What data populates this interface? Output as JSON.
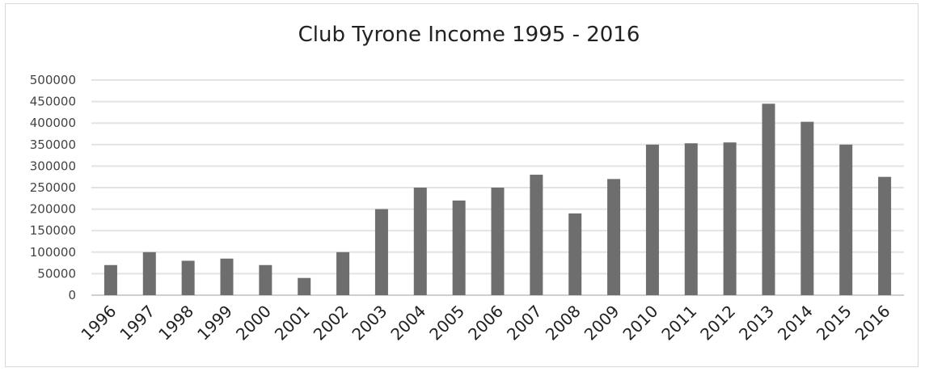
{
  "chart_data": {
    "type": "bar",
    "title": "Club Tyrone Income 1995 - 2016",
    "xlabel": "",
    "ylabel": "",
    "categories": [
      "1996",
      "1997",
      "1998",
      "1999",
      "2000",
      "2001",
      "2002",
      "2003",
      "2004",
      "2005",
      "2006",
      "2007",
      "2008",
      "2009",
      "2010",
      "2011",
      "2012",
      "2013",
      "2014",
      "2015",
      "2016"
    ],
    "values": [
      70000,
      100000,
      80000,
      85000,
      70000,
      40000,
      100000,
      200000,
      250000,
      220000,
      250000,
      280000,
      190000,
      270000,
      350000,
      353000,
      355000,
      445000,
      403000,
      350000,
      275000
    ],
    "ylim": [
      0,
      500000
    ],
    "yticks": [
      "0",
      "50000",
      "100000",
      "150000",
      "200000",
      "250000",
      "300000",
      "350000",
      "400000",
      "450000",
      "500000"
    ],
    "grid": true,
    "legend": "none",
    "bar_color": "#6e6e6e",
    "grid_color": "#e3e3e3"
  }
}
